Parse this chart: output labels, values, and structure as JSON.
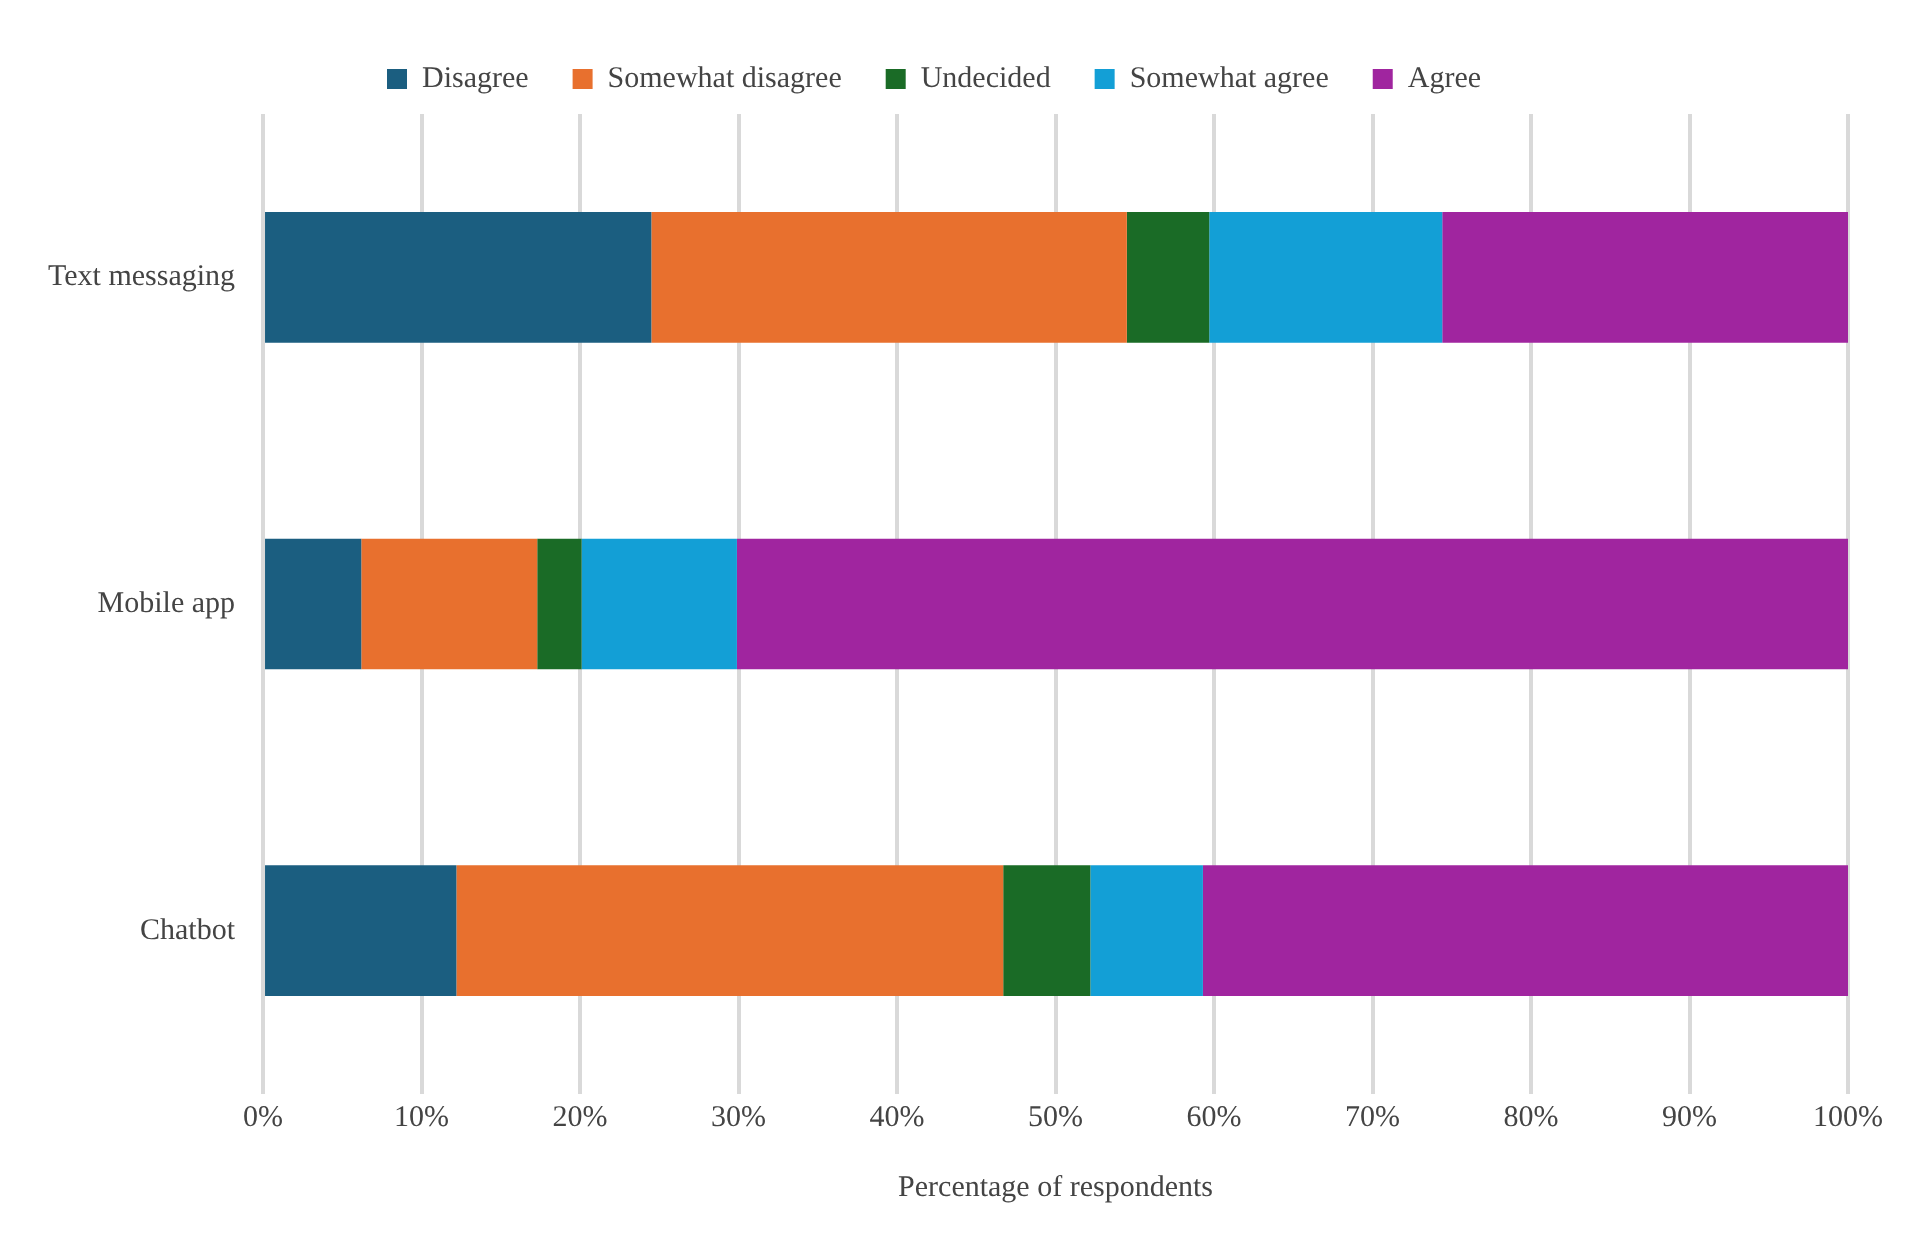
{
  "chart_data": {
    "type": "bar",
    "orientation": "horizontal",
    "stacked": true,
    "xlabel": "Percentage of respondents",
    "categories": [
      "Text messaging",
      "Mobile app",
      "Chatbot"
    ],
    "series": [
      {
        "name": "Disagree",
        "color": "#1b5e80",
        "values": [
          24.5,
          6.2,
          12.2
        ]
      },
      {
        "name": "Somewhat disagree",
        "color": "#e8702e",
        "values": [
          30.0,
          11.1,
          34.5
        ]
      },
      {
        "name": "Undecided",
        "color": "#1a6b26",
        "values": [
          5.2,
          2.8,
          5.5
        ]
      },
      {
        "name": "Somewhat agree",
        "color": "#139fd6",
        "values": [
          14.7,
          9.8,
          7.1
        ]
      },
      {
        "name": "Agree",
        "color": "#a0259f",
        "values": [
          25.6,
          70.1,
          40.7
        ]
      }
    ],
    "xlim": [
      0,
      100
    ],
    "xticks": [
      {
        "value": 0,
        "label": "0%"
      },
      {
        "value": 10,
        "label": "10%"
      },
      {
        "value": 20,
        "label": "20%"
      },
      {
        "value": 30,
        "label": "30%"
      },
      {
        "value": 40,
        "label": "40%"
      },
      {
        "value": 50,
        "label": "50%"
      },
      {
        "value": 60,
        "label": "60%"
      },
      {
        "value": 70,
        "label": "70%"
      },
      {
        "value": 80,
        "label": "80%"
      },
      {
        "value": 90,
        "label": "90%"
      },
      {
        "value": 100,
        "label": "100%"
      }
    ],
    "grid": "x",
    "legend": "top"
  }
}
